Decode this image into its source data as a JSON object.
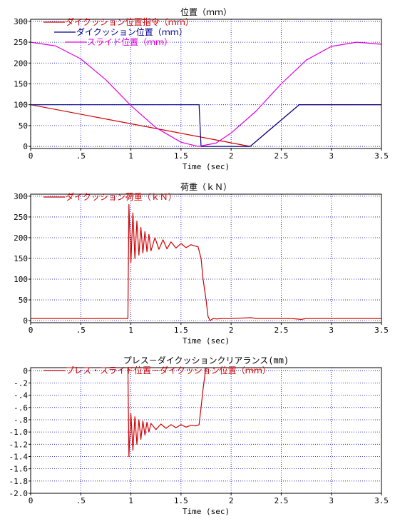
{
  "colors": {
    "grid": "#0000c8",
    "axis": "#000000",
    "background": "#ffffff",
    "red": "#d00000",
    "navy": "#00008b",
    "magenta": "#e000e0"
  },
  "chart_data": [
    {
      "type": "line",
      "title": "位置（ｍｍ）",
      "xlabel": "Time (sec)",
      "ylabel": "",
      "xlim": [
        0,
        3.5
      ],
      "ylim": [
        -5,
        305
      ],
      "grid": true,
      "legend_placement": "top-left",
      "xticks": [
        0,
        0.5,
        1,
        1.5,
        2,
        2.5,
        3,
        3.5
      ],
      "xtick_labels": [
        "0",
        ".5",
        "1",
        "1.5",
        "2",
        "2.5",
        "3",
        "3.5"
      ],
      "yticks": [
        0,
        50,
        100,
        150,
        200,
        250,
        300
      ],
      "ytick_labels": [
        "0",
        "50",
        "100",
        "150",
        "200",
        "250",
        "300"
      ],
      "series": [
        {
          "name": "ダイクッション位置指令（ｍｍ）",
          "color": "#d00000",
          "x": [
            0,
            2.19,
            2.68,
            3.5
          ],
          "y": [
            100,
            0,
            100,
            100
          ]
        },
        {
          "name": "ダイクッション位置（ｍｍ）",
          "color": "#00008b",
          "x": [
            0,
            1.68,
            1.7,
            2.19,
            2.68,
            3.5
          ],
          "y": [
            100,
            100,
            0,
            0,
            100,
            100
          ]
        },
        {
          "name": "スライド位置（ｍｍ）",
          "color": "#e000e0",
          "x": [
            0,
            0.25,
            0.5,
            0.75,
            1.0,
            1.25,
            1.5,
            1.67,
            1.85,
            2.0,
            2.25,
            2.5,
            2.75,
            3.0,
            3.25,
            3.5
          ],
          "y": [
            250,
            241,
            210,
            160,
            98,
            45,
            10,
            0,
            8,
            32,
            85,
            150,
            207,
            240,
            250,
            245
          ]
        }
      ]
    },
    {
      "type": "line",
      "title": "荷重（ｋＮ）",
      "xlabel": "Time (sec)",
      "ylabel": "",
      "xlim": [
        0,
        3.5
      ],
      "ylim": [
        -5,
        305
      ],
      "grid": true,
      "legend_placement": "top-left",
      "xticks": [
        0,
        0.5,
        1,
        1.5,
        2,
        2.5,
        3,
        3.5
      ],
      "xtick_labels": [
        "0",
        ".5",
        "1",
        "1.5",
        "2",
        "2.5",
        "3",
        "3.5"
      ],
      "yticks": [
        0,
        50,
        100,
        150,
        200,
        250,
        300
      ],
      "ytick_labels": [
        "0",
        "50",
        "100",
        "150",
        "200",
        "250",
        "300"
      ],
      "series": [
        {
          "name": "ダイクッション荷重（ｋＮ）",
          "color": "#d00000",
          "x": [
            0,
            0.97,
            0.98,
            1.0,
            1.02,
            1.04,
            1.06,
            1.08,
            1.1,
            1.12,
            1.14,
            1.16,
            1.18,
            1.2,
            1.24,
            1.28,
            1.32,
            1.36,
            1.4,
            1.45,
            1.5,
            1.55,
            1.6,
            1.64,
            1.67,
            1.7,
            1.72,
            1.75,
            1.77,
            1.79,
            1.82,
            1.86,
            1.9,
            2.0,
            2.2,
            2.25,
            2.3,
            2.6,
            2.7,
            2.75,
            2.8,
            3.0,
            3.5
          ],
          "y": [
            5,
            5,
            280,
            140,
            260,
            150,
            240,
            158,
            225,
            163,
            215,
            166,
            208,
            168,
            200,
            172,
            195,
            173,
            190,
            175,
            186,
            176,
            183,
            180,
            178,
            150,
            100,
            50,
            10,
            0,
            5,
            4,
            5,
            5,
            7,
            5,
            5,
            5,
            3,
            5,
            5,
            5,
            5
          ]
        }
      ]
    },
    {
      "type": "line",
      "title": "プレス－ダイクッションクリアランス(mm)",
      "xlabel": "Time (sec)",
      "ylabel": "",
      "xlim": [
        0,
        3.5
      ],
      "ylim": [
        -2.0,
        0.05
      ],
      "grid": true,
      "legend_placement": "top-left",
      "xticks": [
        0,
        0.5,
        1,
        1.5,
        2,
        2.5,
        3,
        3.5
      ],
      "xtick_labels": [
        "0",
        ".5",
        "1",
        "1.5",
        "2",
        "2.5",
        "3",
        "3.5"
      ],
      "yticks": [
        0,
        -0.2,
        -0.4,
        -0.6,
        -0.8,
        -1.0,
        -1.2,
        -1.4,
        -1.6,
        -1.8,
        -2.0
      ],
      "ytick_labels": [
        "0",
        "-.2",
        "-.4",
        "-.6",
        "-.8",
        "-1.0",
        "-1.2",
        "-1.4",
        "-1.6",
        "-1.8",
        "-2.0"
      ],
      "series": [
        {
          "name": "プレス・スライド位置－ダイクッション位置（ｍｍ）",
          "color": "#d00000",
          "x": [
            0.97,
            0.98,
            1.0,
            1.02,
            1.04,
            1.06,
            1.08,
            1.1,
            1.12,
            1.14,
            1.16,
            1.18,
            1.2,
            1.25,
            1.3,
            1.35,
            1.4,
            1.45,
            1.5,
            1.55,
            1.6,
            1.65,
            1.68,
            1.7,
            1.72,
            1.74,
            1.75
          ],
          "y": [
            0.05,
            -1.4,
            -0.7,
            -1.3,
            -0.75,
            -1.2,
            -0.8,
            -1.12,
            -0.82,
            -1.05,
            -0.84,
            -1.0,
            -0.86,
            -0.96,
            -0.87,
            -0.94,
            -0.88,
            -0.93,
            -0.88,
            -0.92,
            -0.89,
            -0.9,
            -0.88,
            -0.6,
            -0.3,
            -0.05,
            0.05
          ]
        }
      ]
    }
  ]
}
